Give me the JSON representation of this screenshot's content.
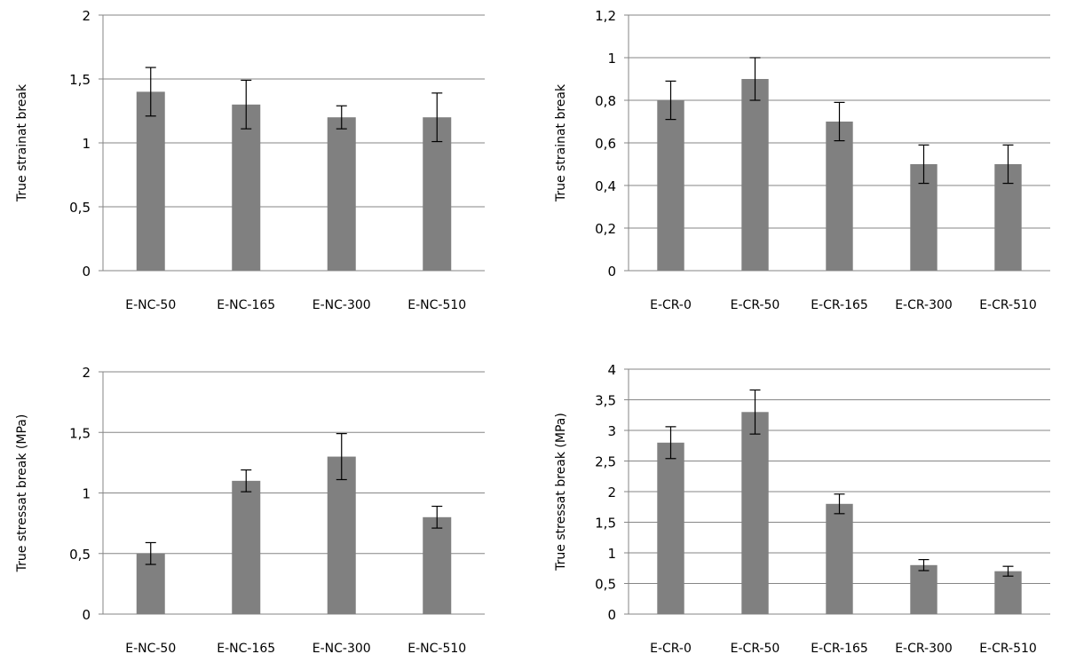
{
  "colors": {
    "bar": "#808080",
    "grid": "#868686",
    "axis": "#868686",
    "errorbar": "#000000",
    "text": "#000000"
  },
  "chart_data": [
    {
      "type": "bar",
      "title": "",
      "xlabel": "",
      "ylabel": "True strainat break",
      "categories": [
        "E-NC-50",
        "E-NC-165",
        "E-NC-300",
        "E-NC-510"
      ],
      "values": [
        1.4,
        1.3,
        1.2,
        1.2
      ],
      "errors": [
        0.19,
        0.19,
        0.09,
        0.19
      ],
      "ylim": [
        0,
        2
      ],
      "yticks": [
        "0",
        "0,5",
        "1",
        "1,5",
        "2"
      ],
      "grid": true,
      "legend": "none"
    },
    {
      "type": "bar",
      "title": "",
      "xlabel": "",
      "ylabel": "True strainat break",
      "categories": [
        "E-CR-0",
        "E-CR-50",
        "E-CR-165",
        "E-CR-300",
        "E-CR-510"
      ],
      "values": [
        0.8,
        0.9,
        0.7,
        0.5,
        0.5
      ],
      "errors": [
        0.09,
        0.1,
        0.09,
        0.09,
        0.09
      ],
      "ylim": [
        0,
        1.2
      ],
      "yticks": [
        "0",
        "0,2",
        "0,4",
        "0,6",
        "0,8",
        "1",
        "1,2"
      ],
      "grid": true,
      "legend": "none"
    },
    {
      "type": "bar",
      "title": "",
      "xlabel": "",
      "ylabel": "True stressat break (MPa)",
      "categories": [
        "E-NC-50",
        "E-NC-165",
        "E-NC-300",
        "E-NC-510"
      ],
      "values": [
        0.5,
        1.1,
        1.3,
        0.8
      ],
      "errors": [
        0.09,
        0.09,
        0.19,
        0.09
      ],
      "ylim": [
        0,
        2
      ],
      "yticks": [
        "0",
        "0,5",
        "1",
        "1,5",
        "2"
      ],
      "grid": true,
      "legend": "none"
    },
    {
      "type": "bar",
      "title": "",
      "xlabel": "",
      "ylabel": "True stressat break (MPa)",
      "categories": [
        "E-CR-0",
        "E-CR-50",
        "E-CR-165",
        "E-CR-300",
        "E-CR-510"
      ],
      "values": [
        2.8,
        3.3,
        1.8,
        0.8,
        0.7
      ],
      "errors": [
        0.26,
        0.36,
        0.16,
        0.09,
        0.08
      ],
      "ylim": [
        0,
        4
      ],
      "yticks": [
        "0",
        "0,5",
        "1",
        "1,5",
        "2",
        "2,5",
        "3",
        "3,5",
        "4"
      ],
      "grid": true,
      "legend": "none"
    }
  ]
}
